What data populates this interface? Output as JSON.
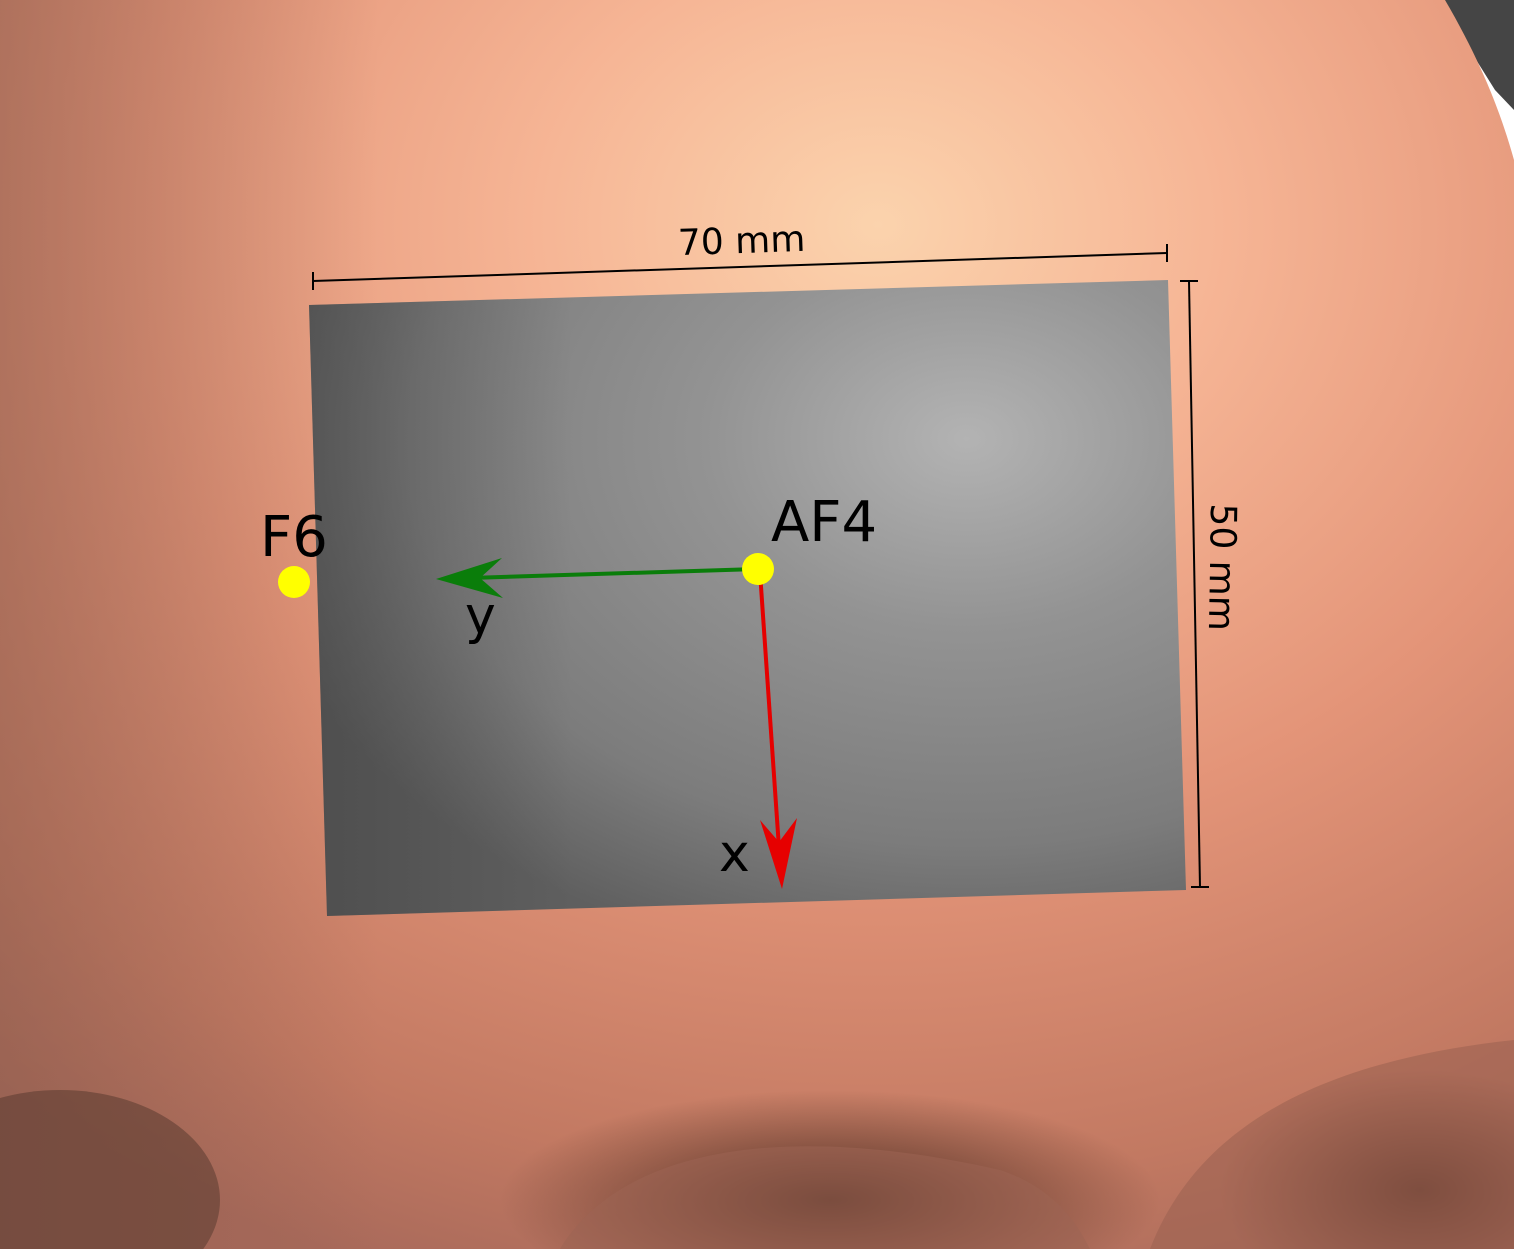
{
  "electrodes": [
    {
      "label": "F6",
      "role": "reference-electrode"
    },
    {
      "label": "AF4",
      "role": "origin-electrode"
    }
  ],
  "axes": {
    "x": {
      "label": "x",
      "color": "#e60000"
    },
    "y": {
      "label": "y",
      "color": "#0a7d0a"
    }
  },
  "dimensions": {
    "width": "70 mm",
    "height": "50 mm"
  },
  "colors": {
    "skin": "#e8957a",
    "skin_highlight": "#f9c7a2",
    "skin_shadow": "#8a5a48",
    "patch": "#808080",
    "electrode": "#ffff00",
    "background": "#ffffff",
    "hair": "#4a4a4a"
  }
}
